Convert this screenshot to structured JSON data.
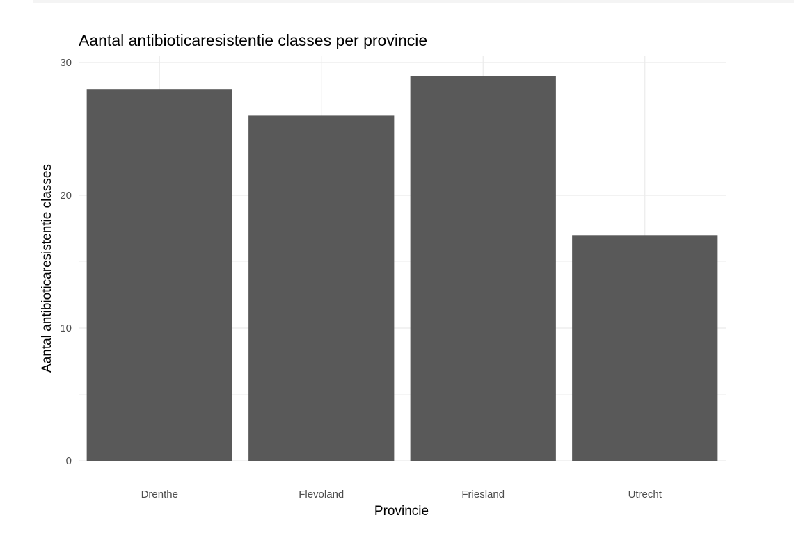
{
  "chart_data": {
    "type": "bar",
    "title": "Aantal antibioticaresistentie classes per provincie",
    "xlabel": "Provincie",
    "ylabel": "Aantal antibioticaresistentie classes",
    "categories": [
      "Drenthe",
      "Flevoland",
      "Friesland",
      "Utrecht"
    ],
    "values": [
      28,
      26,
      29,
      17
    ],
    "ylim": [
      0,
      30
    ],
    "y_ticks": [
      0,
      10,
      20,
      30
    ],
    "grid": true,
    "legend": "none",
    "bar_color": "#595959"
  }
}
